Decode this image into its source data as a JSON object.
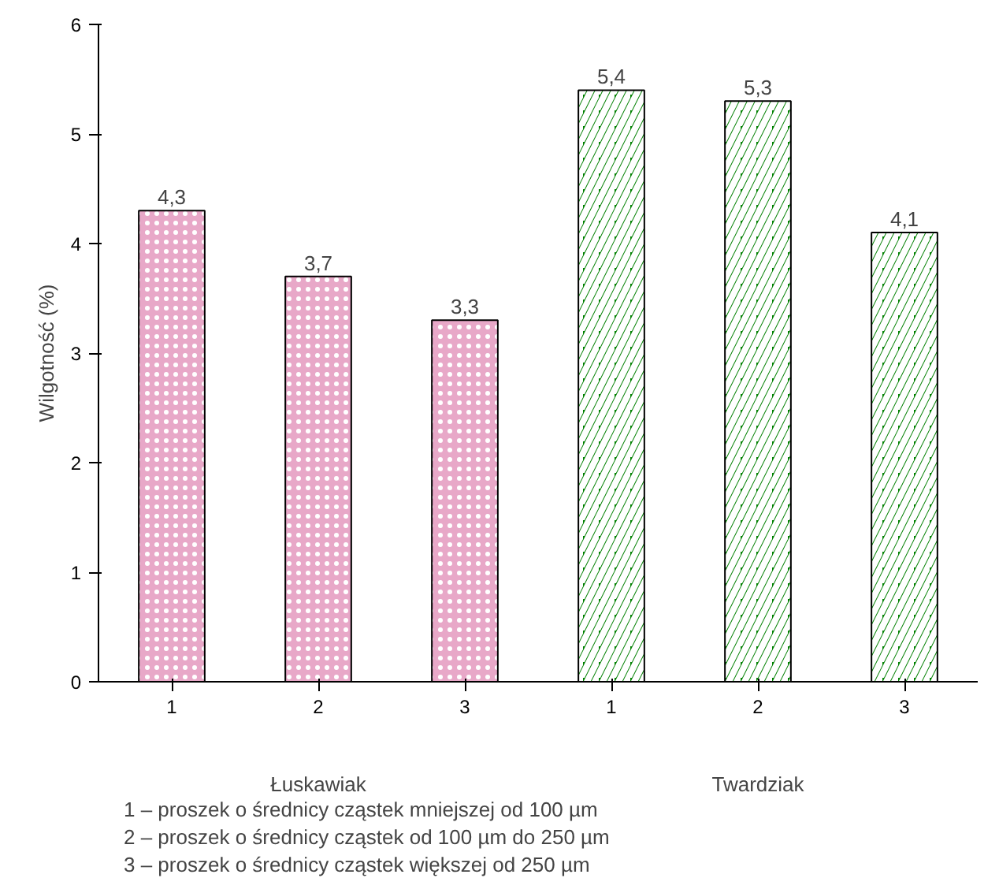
{
  "chart_data": {
    "type": "bar",
    "ylabel": "Wilgotność (%)",
    "categories": [
      "1",
      "2",
      "3",
      "1",
      "2",
      "3"
    ],
    "series": [
      {
        "color": "#e8a8c8",
        "values": [
          4.3,
          3.7,
          3.3,
          null,
          null,
          null
        ],
        "value_labels": [
          "4,3",
          "3,7",
          "3,3",
          null,
          null,
          null
        ]
      },
      {
        "color": "#008000",
        "values": [
          null,
          null,
          null,
          5.4,
          5.3,
          4.1
        ],
        "value_labels": [
          null,
          null,
          null,
          "5,4",
          "5,3",
          "4,1"
        ]
      }
    ],
    "ylim": [
      0,
      6
    ],
    "yticks": [
      0,
      1,
      2,
      3,
      4,
      5,
      6
    ],
    "grid": false,
    "annotations": [
      "Łuskawiak",
      "Twardziak",
      "1 – proszek o średnicy cząstek mniejszej od 100 µm",
      "2 – proszek o średnicy cząstek od 100 µm do 250 µm",
      "3 – proszek o średnicy cząstek większej od 250 µm"
    ]
  }
}
